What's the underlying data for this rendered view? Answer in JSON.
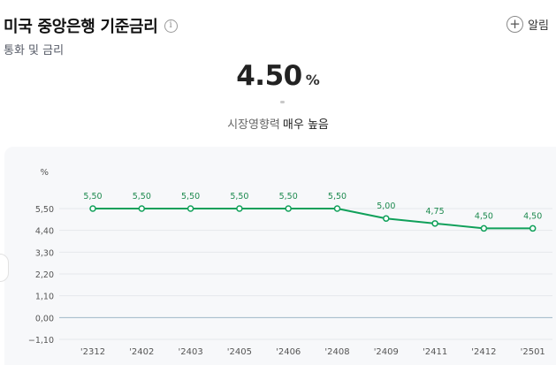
{
  "header": {
    "title": "미국 중앙은행 기준금리",
    "info_icon": "i",
    "subtitle": "통화 및 금리",
    "alarm_label": "알림",
    "plus_glyph": "+"
  },
  "summary": {
    "rate": "4.50",
    "unit": "%",
    "impact_label": "시장영향력",
    "impact_level": "매우 높음"
  },
  "colors": {
    "line": "#10a05a",
    "label": "#1e8a4f",
    "grid": "#e6e8ec",
    "zero_line": "#9fb8c8",
    "axis_text": "#555555"
  },
  "chart_data": {
    "type": "line",
    "y_unit": "%",
    "y_ticks": [
      "5,50",
      "4,40",
      "3,30",
      "2,20",
      "1,10",
      "0,00",
      "−1,10"
    ],
    "y_tick_values": [
      5.5,
      4.4,
      3.3,
      2.2,
      1.1,
      0.0,
      -1.1
    ],
    "ylim": [
      -1.1,
      5.5
    ],
    "categories": [
      "'2312",
      "'2402",
      "'2403",
      "'2405",
      "'2406",
      "'2408",
      "'2409",
      "'2411",
      "'2412",
      "'2501"
    ],
    "values": [
      5.5,
      5.5,
      5.5,
      5.5,
      5.5,
      5.5,
      5.0,
      4.75,
      4.5,
      4.5
    ],
    "data_labels": [
      "5,50",
      "5,50",
      "5,50",
      "5,50",
      "5,50",
      "5,50",
      "5,00",
      "4,75",
      "4,50",
      "4,50"
    ],
    "grid": true
  }
}
